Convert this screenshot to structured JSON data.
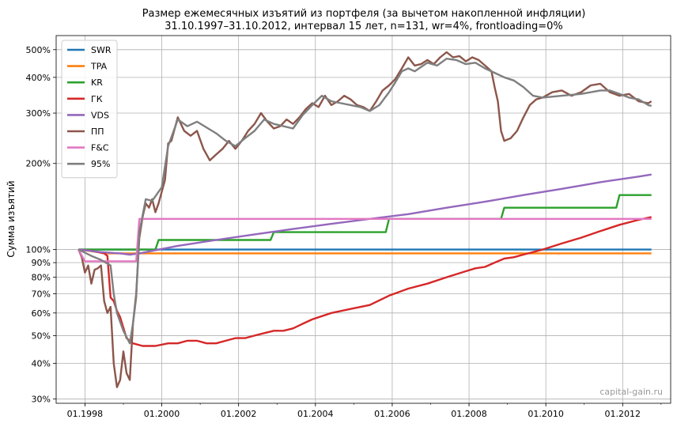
{
  "chart_data": {
    "type": "line",
    "title": "Размер ежемесячных изъятий из портфеля (за вычетом накопленной инфляции)",
    "subtitle": "31.10.1997–31.10.2012, интервал 15 лет, n=131, wr=4%, frontloading=0%",
    "xlabel": "",
    "ylabel": "Сумма изъятий",
    "y_scale": "log",
    "ylim": [
      29,
      560
    ],
    "xlim": [
      "1997-04",
      "2013-04"
    ],
    "x_ticks": [
      "01.1998",
      "01.2000",
      "01.2002",
      "01.2004",
      "01.2006",
      "01.2008",
      "01.2010",
      "01.2012"
    ],
    "y_ticks": [
      "30%",
      "40%",
      "50%",
      "60%",
      "70%",
      "80%",
      "90%",
      "100%",
      "200%",
      "300%",
      "400%",
      "500%"
    ],
    "grid": true,
    "legend_position": "top-left",
    "watermark": "capital-gain.ru",
    "series": [
      {
        "name": "SWR",
        "color": "#1f77b4",
        "points": [
          [
            "1997-11",
            100
          ],
          [
            "2012-10",
            100
          ]
        ]
      },
      {
        "name": "TPA",
        "color": "#ff7f0e",
        "points": [
          [
            "1997-11",
            100
          ],
          [
            "1998-02",
            99
          ],
          [
            "1998-05",
            98
          ],
          [
            "1998-08",
            97
          ],
          [
            "2012-10",
            97
          ]
        ]
      },
      {
        "name": "KR",
        "color": "#2ca02c",
        "points": [
          [
            "1997-11",
            100
          ],
          [
            "1999-11",
            100
          ],
          [
            "1999-12",
            108
          ],
          [
            "2002-11",
            108
          ],
          [
            "2002-12",
            115
          ],
          [
            "2005-11",
            115
          ],
          [
            "2005-12",
            128
          ],
          [
            "2008-11",
            128
          ],
          [
            "2008-12",
            140
          ],
          [
            "2011-11",
            140
          ],
          [
            "2011-12",
            155
          ],
          [
            "2012-10",
            155
          ]
        ]
      },
      {
        "name": "ГК",
        "color": "#d62728",
        "points": [
          [
            "1997-11",
            100
          ],
          [
            "1998-03",
            99
          ],
          [
            "1998-07",
            97
          ],
          [
            "1998-08",
            95
          ],
          [
            "1998-09",
            68
          ],
          [
            "1998-10",
            66
          ],
          [
            "1998-11",
            61
          ],
          [
            "1998-12",
            58
          ],
          [
            "1999-02",
            49
          ],
          [
            "1999-04",
            47
          ],
          [
            "1999-07",
            46
          ],
          [
            "1999-08",
            46
          ],
          [
            "1999-11",
            46
          ],
          [
            "2000-03",
            47
          ],
          [
            "2000-06",
            47
          ],
          [
            "2000-09",
            48
          ],
          [
            "2000-12",
            48
          ],
          [
            "2001-03",
            47
          ],
          [
            "2001-06",
            47
          ],
          [
            "2001-09",
            48
          ],
          [
            "2001-12",
            49
          ],
          [
            "2002-03",
            49
          ],
          [
            "2002-06",
            50
          ],
          [
            "2002-09",
            51
          ],
          [
            "2002-12",
            52
          ],
          [
            "2003-03",
            52
          ],
          [
            "2003-06",
            53
          ],
          [
            "2003-09",
            55
          ],
          [
            "2003-12",
            57
          ],
          [
            "2004-06",
            60
          ],
          [
            "2004-12",
            62
          ],
          [
            "2005-06",
            64
          ],
          [
            "2005-12",
            69
          ],
          [
            "2006-06",
            73
          ],
          [
            "2006-12",
            76
          ],
          [
            "2007-06",
            80
          ],
          [
            "2007-12",
            84
          ],
          [
            "2008-03",
            86
          ],
          [
            "2008-06",
            87
          ],
          [
            "2008-09",
            90
          ],
          [
            "2008-12",
            93
          ],
          [
            "2009-03",
            94
          ],
          [
            "2009-06",
            96
          ],
          [
            "2009-12",
            100
          ],
          [
            "2010-06",
            105
          ],
          [
            "2010-12",
            110
          ],
          [
            "2011-06",
            116
          ],
          [
            "2011-12",
            122
          ],
          [
            "2012-06",
            127
          ],
          [
            "2012-10",
            130
          ]
        ]
      },
      {
        "name": "VDS",
        "color": "#9467bd",
        "points": [
          [
            "1997-11",
            100
          ],
          [
            "1998-06",
            98
          ],
          [
            "1998-12",
            97
          ],
          [
            "1999-03",
            96
          ],
          [
            "1999-06",
            97
          ],
          [
            "2000-06",
            103
          ],
          [
            "2001-06",
            108
          ],
          [
            "2002-06",
            113
          ],
          [
            "2003-06",
            118
          ],
          [
            "2004-06",
            123
          ],
          [
            "2005-06",
            128
          ],
          [
            "2006-06",
            133
          ],
          [
            "2007-06",
            140
          ],
          [
            "2008-06",
            147
          ],
          [
            "2009-06",
            155
          ],
          [
            "2010-06",
            163
          ],
          [
            "2011-06",
            172
          ],
          [
            "2012-06",
            180
          ],
          [
            "2012-10",
            183
          ]
        ]
      },
      {
        "name": "ПП",
        "color": "#8c564b",
        "points": [
          [
            "1997-11",
            100
          ],
          [
            "1997-12",
            94
          ],
          [
            "1998-01",
            83
          ],
          [
            "1998-02",
            88
          ],
          [
            "1998-03",
            76
          ],
          [
            "1998-04",
            85
          ],
          [
            "1998-05",
            86
          ],
          [
            "1998-06",
            88
          ],
          [
            "1998-07",
            66
          ],
          [
            "1998-08",
            60
          ],
          [
            "1998-09",
            63
          ],
          [
            "1998-10",
            40
          ],
          [
            "1998-11",
            33
          ],
          [
            "1998-12",
            35
          ],
          [
            "1999-01",
            44
          ],
          [
            "1999-02",
            37
          ],
          [
            "1999-03",
            35
          ],
          [
            "1999-04",
            55
          ],
          [
            "1999-05",
            70
          ],
          [
            "1999-06",
            110
          ],
          [
            "1999-07",
            130
          ],
          [
            "1999-08",
            145
          ],
          [
            "1999-09",
            140
          ],
          [
            "1999-10",
            150
          ],
          [
            "1999-11",
            135
          ],
          [
            "1999-12",
            145
          ],
          [
            "2000-02",
            175
          ],
          [
            "2000-03",
            235
          ],
          [
            "2000-04",
            240
          ],
          [
            "2000-06",
            290
          ],
          [
            "2000-08",
            260
          ],
          [
            "2000-10",
            250
          ],
          [
            "2000-12",
            260
          ],
          [
            "2001-02",
            225
          ],
          [
            "2001-04",
            205
          ],
          [
            "2001-06",
            215
          ],
          [
            "2001-08",
            225
          ],
          [
            "2001-10",
            240
          ],
          [
            "2001-12",
            225
          ],
          [
            "2002-02",
            240
          ],
          [
            "2002-04",
            260
          ],
          [
            "2002-06",
            275
          ],
          [
            "2002-08",
            300
          ],
          [
            "2002-10",
            280
          ],
          [
            "2002-12",
            265
          ],
          [
            "2003-02",
            270
          ],
          [
            "2003-04",
            285
          ],
          [
            "2003-06",
            275
          ],
          [
            "2003-08",
            290
          ],
          [
            "2003-10",
            310
          ],
          [
            "2003-12",
            325
          ],
          [
            "2004-02",
            315
          ],
          [
            "2004-04",
            345
          ],
          [
            "2004-06",
            320
          ],
          [
            "2004-08",
            330
          ],
          [
            "2004-10",
            345
          ],
          [
            "2004-12",
            335
          ],
          [
            "2005-02",
            320
          ],
          [
            "2005-04",
            315
          ],
          [
            "2005-06",
            305
          ],
          [
            "2005-08",
            330
          ],
          [
            "2005-10",
            360
          ],
          [
            "2005-12",
            375
          ],
          [
            "2006-02",
            395
          ],
          [
            "2006-04",
            430
          ],
          [
            "2006-06",
            470
          ],
          [
            "2006-08",
            440
          ],
          [
            "2006-10",
            445
          ],
          [
            "2006-12",
            460
          ],
          [
            "2007-02",
            445
          ],
          [
            "2007-04",
            470
          ],
          [
            "2007-06",
            490
          ],
          [
            "2007-08",
            470
          ],
          [
            "2007-10",
            475
          ],
          [
            "2007-12",
            455
          ],
          [
            "2008-02",
            470
          ],
          [
            "2008-04",
            460
          ],
          [
            "2008-06",
            440
          ],
          [
            "2008-08",
            420
          ],
          [
            "2008-09",
            370
          ],
          [
            "2008-10",
            330
          ],
          [
            "2008-11",
            260
          ],
          [
            "2008-12",
            240
          ],
          [
            "2009-02",
            245
          ],
          [
            "2009-04",
            260
          ],
          [
            "2009-06",
            290
          ],
          [
            "2009-08",
            320
          ],
          [
            "2009-10",
            335
          ],
          [
            "2009-12",
            340
          ],
          [
            "2010-03",
            355
          ],
          [
            "2010-06",
            360
          ],
          [
            "2010-09",
            345
          ],
          [
            "2010-12",
            355
          ],
          [
            "2011-03",
            375
          ],
          [
            "2011-06",
            380
          ],
          [
            "2011-09",
            355
          ],
          [
            "2011-12",
            345
          ],
          [
            "2012-03",
            350
          ],
          [
            "2012-06",
            330
          ],
          [
            "2012-09",
            325
          ],
          [
            "2012-10",
            330
          ]
        ]
      },
      {
        "name": "F&C",
        "color": "#e377c2",
        "points": [
          [
            "1997-11",
            100
          ],
          [
            "1998-01",
            91
          ],
          [
            "1999-05",
            91
          ],
          [
            "1999-06",
            128
          ],
          [
            "2012-10",
            128
          ]
        ]
      },
      {
        "name": "95%",
        "color": "#7f7f7f",
        "points": [
          [
            "1997-11",
            100
          ],
          [
            "1998-03",
            95
          ],
          [
            "1998-06",
            92
          ],
          [
            "1998-09",
            88
          ],
          [
            "1998-10",
            70
          ],
          [
            "1998-11",
            60
          ],
          [
            "1999-01",
            52
          ],
          [
            "1999-03",
            47
          ],
          [
            "1999-04",
            55
          ],
          [
            "1999-05",
            68
          ],
          [
            "1999-06",
            115
          ],
          [
            "1999-08",
            150
          ],
          [
            "1999-10",
            148
          ],
          [
            "2000-01",
            165
          ],
          [
            "2000-03",
            230
          ],
          [
            "2000-06",
            285
          ],
          [
            "2000-09",
            270
          ],
          [
            "2000-12",
            280
          ],
          [
            "2001-06",
            255
          ],
          [
            "2001-09",
            240
          ],
          [
            "2001-12",
            230
          ],
          [
            "2002-03",
            245
          ],
          [
            "2002-06",
            260
          ],
          [
            "2002-09",
            285
          ],
          [
            "2002-12",
            275
          ],
          [
            "2003-03",
            270
          ],
          [
            "2003-06",
            265
          ],
          [
            "2003-09",
            295
          ],
          [
            "2003-12",
            320
          ],
          [
            "2004-03",
            345
          ],
          [
            "2004-06",
            330
          ],
          [
            "2004-09",
            325
          ],
          [
            "2004-12",
            320
          ],
          [
            "2005-03",
            315
          ],
          [
            "2005-06",
            305
          ],
          [
            "2005-09",
            320
          ],
          [
            "2005-12",
            355
          ],
          [
            "2006-02",
            385
          ],
          [
            "2006-04",
            420
          ],
          [
            "2006-06",
            430
          ],
          [
            "2006-08",
            420
          ],
          [
            "2006-10",
            435
          ],
          [
            "2006-12",
            450
          ],
          [
            "2007-03",
            440
          ],
          [
            "2007-06",
            465
          ],
          [
            "2007-09",
            460
          ],
          [
            "2007-12",
            445
          ],
          [
            "2008-03",
            450
          ],
          [
            "2008-06",
            430
          ],
          [
            "2008-09",
            415
          ],
          [
            "2008-12",
            400
          ],
          [
            "2009-03",
            390
          ],
          [
            "2009-06",
            370
          ],
          [
            "2009-09",
            345
          ],
          [
            "2009-12",
            340
          ],
          [
            "2010-06",
            345
          ],
          [
            "2010-12",
            350
          ],
          [
            "2011-06",
            360
          ],
          [
            "2011-09",
            360
          ],
          [
            "2011-12",
            350
          ],
          [
            "2012-03",
            340
          ],
          [
            "2012-06",
            335
          ],
          [
            "2012-09",
            320
          ],
          [
            "2012-10",
            318
          ]
        ]
      }
    ]
  }
}
